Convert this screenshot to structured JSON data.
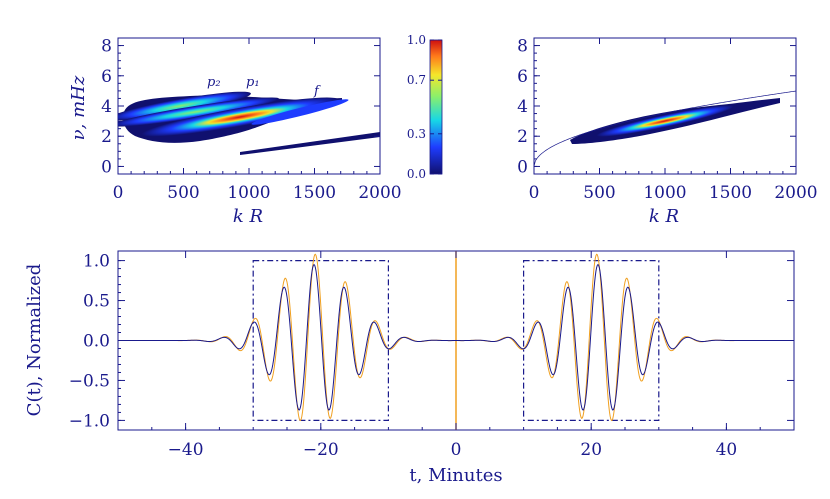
{
  "chart_data": [
    {
      "type": "heatmap",
      "panel": "top-left",
      "xlabel": "k R",
      "ylabel": "ν, mHz",
      "xlim": [
        0,
        2000
      ],
      "ylim": [
        -0.5,
        8.5
      ],
      "xticks": [
        "0",
        "500",
        "1000",
        "1500",
        "2000"
      ],
      "yticks": [
        "0",
        "2",
        "4",
        "6",
        "8"
      ],
      "ridges": [
        {
          "name": "p2",
          "k": [
            80,
            300,
            600,
            900
          ],
          "nu": [
            3.3,
            4.0,
            4.6,
            5.0
          ]
        },
        {
          "name": "p1",
          "k": [
            80,
            400,
            800,
            1100
          ],
          "nu": [
            3.0,
            3.6,
            4.2,
            4.6
          ]
        },
        {
          "name": "f",
          "k": [
            200,
            600,
            1100,
            1600,
            1750
          ],
          "nu": [
            2.8,
            3.0,
            3.5,
            4.2,
            4.5
          ]
        },
        {
          "name": "lower",
          "k": [
            900,
            1400,
            2000
          ],
          "nu": [
            1.2,
            1.7,
            2.3
          ]
        }
      ],
      "annotations": [
        {
          "label": "p₂",
          "k": 700,
          "nu": 4.9
        },
        {
          "label": "p₁",
          "k": 1000,
          "nu": 4.8
        },
        {
          "label": "f",
          "k": 1520,
          "nu": 4.3
        }
      ]
    },
    {
      "type": "colorbar",
      "ticks": [
        "0.0",
        "0.3",
        "0.7",
        "1.0"
      ],
      "tick_values": [
        0.0,
        0.3,
        0.7,
        1.0
      ],
      "range": [
        0,
        1
      ],
      "colors": [
        "#10106e",
        "#1e3cff",
        "#17d7e6",
        "#8cf06a",
        "#f5e62a",
        "#ff7a1a",
        "#cf0f0f"
      ]
    },
    {
      "type": "heatmap",
      "panel": "top-right",
      "xlabel": "k R",
      "xlim": [
        0,
        2000
      ],
      "ylim": [
        -0.5,
        8.5
      ],
      "xticks": [
        "0",
        "500",
        "1000",
        "1500",
        "2000"
      ],
      "yticks": [
        "0",
        "2",
        "4",
        "6",
        "8"
      ],
      "ridge": {
        "k": [
          300,
          700,
          1100,
          1500,
          1800
        ],
        "nu": [
          2.2,
          2.9,
          3.5,
          4.1,
          4.6
        ]
      },
      "dispersion_curve": "nu = 0.1116 * sqrt(k)"
    },
    {
      "type": "line",
      "panel": "bottom",
      "xlabel": "t, Minutes",
      "ylabel": "C(t), Normalized",
      "xlim": [
        -50,
        50
      ],
      "ylim": [
        -1.12,
        1.12
      ],
      "xticks": [
        "−40",
        "−20",
        "0",
        "20",
        "40"
      ],
      "xtick_values": [
        -40,
        -20,
        0,
        20,
        40
      ],
      "yticks": [
        "−1.0",
        "−0.5",
        "0.0",
        "0.5",
        "1.0"
      ],
      "ytick_values": [
        -1,
        -0.5,
        0,
        0.5,
        1
      ],
      "series": [
        {
          "name": "blue",
          "color": "#1a1a8c",
          "center_abs": 21,
          "amp": 0.95,
          "sigma": 7.5,
          "period": 4.5
        },
        {
          "name": "orange",
          "color": "#f0a020",
          "center_abs": 21,
          "amp": 1.08,
          "sigma": 7.5,
          "period": 4.5
        }
      ],
      "zero_marker_x": 0,
      "windows": [
        [
          -30,
          -10
        ],
        [
          10,
          30
        ]
      ]
    }
  ]
}
